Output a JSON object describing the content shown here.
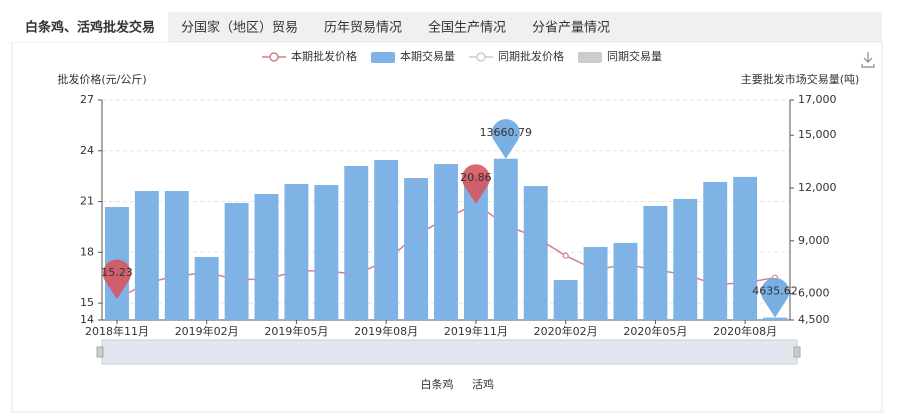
{
  "tabs": [
    "白条鸡、活鸡批发交易",
    "分国家（地区）贸易",
    "历年贸易情况",
    "全国生产情况",
    "分省产量情况"
  ],
  "active_tab": 0,
  "chart_data": {
    "type": "bar-line",
    "categories": [
      "2018年11月",
      null,
      null,
      "2019年02月",
      null,
      null,
      "2019年05月",
      null,
      null,
      "2019年08月",
      null,
      null,
      "2019年11月",
      null,
      null,
      "2020年02月",
      null,
      null,
      "2020年05月",
      null,
      null,
      "2020年08月",
      null
    ],
    "y_label": "批发价格(元/公斤)",
    "y2_label": "主要批发市场交易量(吨)",
    "ylim": [
      14,
      27
    ],
    "yticks": [
      14,
      15,
      18,
      21,
      24,
      27
    ],
    "y2lim": [
      4500,
      17000
    ],
    "y2ticks": [
      {
        "value": 4500,
        "label": "4,500"
      },
      {
        "value": 6000,
        "label": "6,000"
      },
      {
        "value": 9000,
        "label": "9,000"
      },
      {
        "value": 12000,
        "label": "12,000"
      },
      {
        "value": 15000,
        "label": "15,000"
      },
      {
        "value": 17000,
        "label": "17,000"
      }
    ],
    "grid": true,
    "mark_points": [
      "max",
      "min"
    ],
    "series": [
      {
        "name": "本期批发价格",
        "type": "line",
        "color": "#d4808a",
        "pin_color": "#d9555f",
        "values": [
          15.23,
          16.2,
          16.6,
          16.8,
          16.4,
          16.4,
          16.9,
          16.9,
          16.7,
          17.5,
          19.0,
          20.0,
          20.86,
          19.6,
          18.9,
          17.8,
          16.95,
          17.3,
          16.95,
          16.7,
          16.1,
          16.2,
          16.5
        ]
      },
      {
        "name": "本期交易量",
        "type": "bar",
        "axis": "y2",
        "color": "#7fb3e6",
        "pin_color": "#6aa6df",
        "values": [
          10920,
          11830,
          11830,
          8080,
          11150,
          11660,
          12230,
          12170,
          13250,
          13590,
          12570,
          13360,
          12740,
          13660.79,
          12110,
          6770,
          8650,
          8880,
          10980,
          11380,
          12340,
          12630,
          4635.62
        ]
      },
      {
        "name": "同期批发价格",
        "type": "line",
        "color": "#cccccc",
        "inactive": true
      },
      {
        "name": "同期交易量",
        "type": "bar",
        "color": "#cccccc",
        "inactive": true
      }
    ]
  },
  "toggles": [
    "白条鸡",
    "活鸡"
  ],
  "active_toggle": 0
}
